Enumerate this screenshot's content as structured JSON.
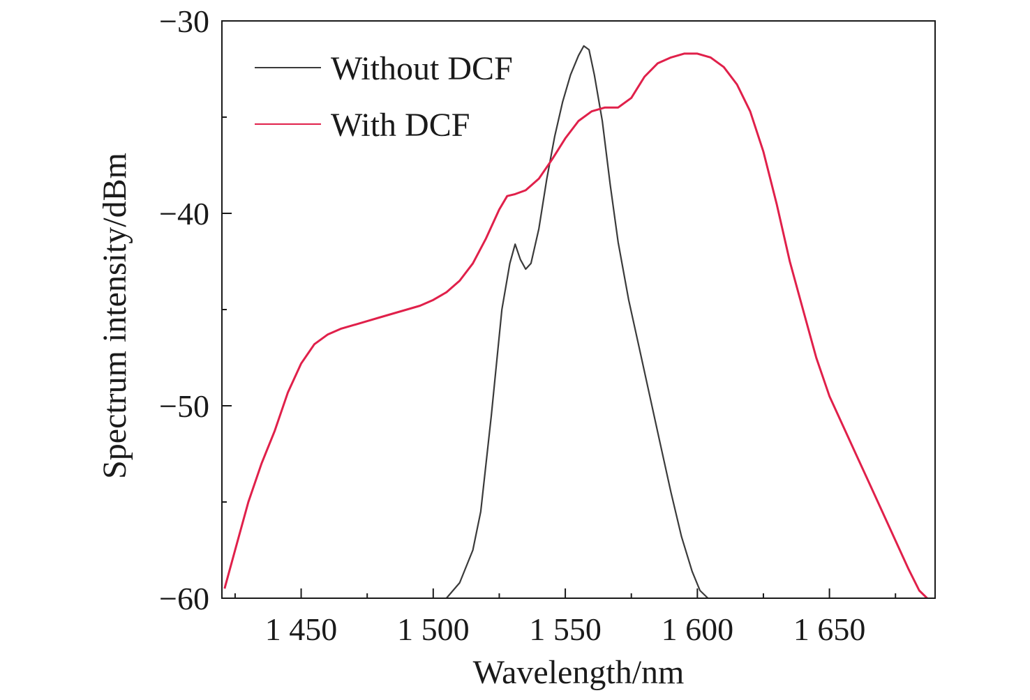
{
  "chart_data": {
    "type": "line",
    "title": "",
    "xlabel": "Wavelength/nm",
    "ylabel": "Spectrum intensity/dBm",
    "xlim": [
      1420,
      1690
    ],
    "ylim": [
      -60,
      -30
    ],
    "xticks": [
      1450,
      1500,
      1550,
      1600,
      1650
    ],
    "xtick_labels": [
      "1 450",
      "1 500",
      "1 550",
      "1 600",
      "1 650"
    ],
    "yticks": [
      -60,
      -50,
      -40,
      -30
    ],
    "ytick_labels": [
      "−60",
      "−50",
      "−40",
      "−30"
    ],
    "grid": false,
    "legend_position": "top-left",
    "series": [
      {
        "name": "Without DCF",
        "color": "#3a3a3a",
        "x": [
          1505,
          1510,
          1515,
          1518,
          1522,
          1526,
          1529,
          1531,
          1533,
          1535,
          1537,
          1540,
          1543,
          1546,
          1549,
          1552,
          1555,
          1557,
          1559,
          1561,
          1564,
          1567,
          1570,
          1574,
          1578,
          1582,
          1586,
          1590,
          1594,
          1598,
          1601,
          1604
        ],
        "y": [
          -60,
          -59.2,
          -57.5,
          -55.5,
          -50.5,
          -45.0,
          -42.6,
          -41.6,
          -42.4,
          -42.9,
          -42.6,
          -40.8,
          -38.2,
          -36.0,
          -34.2,
          -32.8,
          -31.8,
          -31.3,
          -31.5,
          -32.8,
          -35.2,
          -38.5,
          -41.5,
          -44.5,
          -47.0,
          -49.5,
          -52.0,
          -54.5,
          -56.8,
          -58.6,
          -59.6,
          -60
        ]
      },
      {
        "name": "With DCF",
        "color": "#e0204a",
        "x": [
          1421,
          1425,
          1430,
          1435,
          1440,
          1445,
          1450,
          1455,
          1460,
          1465,
          1470,
          1475,
          1480,
          1485,
          1490,
          1495,
          1500,
          1505,
          1510,
          1515,
          1520,
          1525,
          1528,
          1531,
          1535,
          1540,
          1545,
          1550,
          1555,
          1560,
          1565,
          1570,
          1575,
          1580,
          1585,
          1590,
          1595,
          1600,
          1605,
          1610,
          1615,
          1620,
          1625,
          1630,
          1635,
          1640,
          1645,
          1650,
          1655,
          1660,
          1665,
          1670,
          1675,
          1680,
          1684,
          1687
        ],
        "y": [
          -59.5,
          -57.5,
          -55.0,
          -53.0,
          -51.3,
          -49.3,
          -47.8,
          -46.8,
          -46.3,
          -46.0,
          -45.8,
          -45.6,
          -45.4,
          -45.2,
          -45.0,
          -44.8,
          -44.5,
          -44.1,
          -43.5,
          -42.6,
          -41.3,
          -39.8,
          -39.1,
          -39.0,
          -38.8,
          -38.2,
          -37.2,
          -36.1,
          -35.2,
          -34.7,
          -34.5,
          -34.5,
          -34.0,
          -32.9,
          -32.2,
          -31.9,
          -31.7,
          -31.7,
          -31.9,
          -32.4,
          -33.3,
          -34.7,
          -36.8,
          -39.5,
          -42.5,
          -45.0,
          -47.5,
          -49.5,
          -51.0,
          -52.5,
          -54.0,
          -55.5,
          -57.0,
          -58.5,
          -59.6,
          -60
        ]
      }
    ]
  }
}
